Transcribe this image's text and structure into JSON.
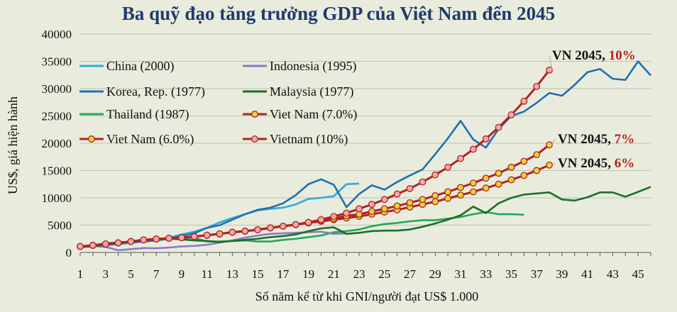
{
  "chart_data": {
    "type": "line",
    "title": "Ba quỹ đạo tăng trưởng GDP của Việt Nam đến 2045",
    "xlabel": "Số năm kể từ khi GNI/người đạt US$ 1.000",
    "ylabel": "US$, giá hiện hành",
    "xlim": [
      1,
      46
    ],
    "ylim": [
      0,
      40000
    ],
    "x_ticks": [
      1,
      3,
      5,
      7,
      9,
      11,
      13,
      15,
      17,
      19,
      21,
      23,
      25,
      27,
      29,
      31,
      33,
      35,
      37,
      39,
      41,
      43,
      45
    ],
    "y_ticks": [
      0,
      5000,
      10000,
      15000,
      20000,
      25000,
      30000,
      35000,
      40000
    ],
    "legend_placement": "top-left",
    "series": [
      {
        "name": "China (2000)",
        "color": "#2eaadc",
        "marker": "none",
        "x": [
          1,
          2,
          3,
          4,
          5,
          6,
          7,
          8,
          9,
          10,
          11,
          12,
          13,
          14,
          15,
          16,
          17,
          18,
          19,
          20,
          21,
          22,
          23
        ],
        "values": [
          1000,
          1150,
          1300,
          1500,
          1750,
          2000,
          2300,
          2700,
          3300,
          3800,
          4500,
          5500,
          6300,
          7000,
          7700,
          8000,
          8200,
          8800,
          9800,
          10000,
          10300,
          12500,
          12600
        ]
      },
      {
        "name": "Indonesia (1995)",
        "color": "#8a78c8",
        "marker": "none",
        "x": [
          1,
          2,
          3,
          4,
          5,
          6,
          7,
          8,
          9,
          10,
          11,
          12,
          13,
          14,
          15,
          16,
          17,
          18,
          19,
          20,
          21,
          22
        ],
        "values": [
          1100,
          1200,
          1000,
          400,
          600,
          800,
          750,
          900,
          1100,
          1200,
          1400,
          1800,
          2200,
          2700,
          3100,
          3400,
          3500,
          3600,
          3700,
          3800,
          3400,
          3500
        ]
      },
      {
        "name": "Korea, Rep. (1977)",
        "color": "#1f6fb4",
        "marker": "none",
        "x": [
          1,
          2,
          3,
          4,
          5,
          6,
          7,
          8,
          9,
          10,
          11,
          12,
          13,
          14,
          15,
          16,
          17,
          18,
          19,
          20,
          21,
          22,
          23,
          24,
          25,
          26,
          27,
          28,
          29,
          30,
          31,
          32,
          33,
          34,
          35,
          36,
          37,
          38,
          39,
          40,
          41,
          42,
          43,
          44,
          45,
          46
        ],
        "values": [
          1100,
          1300,
          1700,
          1800,
          1900,
          2000,
          2200,
          2500,
          3000,
          3500,
          4500,
          5000,
          6000,
          7000,
          7800,
          8200,
          9000,
          10500,
          12500,
          13400,
          12400,
          8300,
          10700,
          12300,
          11500,
          12900,
          14100,
          15200,
          18000,
          20900,
          24100,
          20700,
          19200,
          22600,
          25000,
          25800,
          27400,
          29200,
          28700,
          30700,
          33000,
          33600,
          31800,
          31600,
          35000,
          32400
        ]
      },
      {
        "name": "Malaysia  (1977)",
        "color": "#1c6e2a",
        "marker": "none",
        "x": [
          1,
          2,
          3,
          4,
          5,
          6,
          7,
          8,
          9,
          10,
          11,
          12,
          13,
          14,
          15,
          16,
          17,
          18,
          19,
          20,
          21,
          22,
          23,
          24,
          25,
          26,
          27,
          28,
          29,
          30,
          31,
          32,
          33,
          34,
          35,
          36,
          37,
          38,
          39,
          40,
          41,
          42,
          43,
          44,
          45,
          46
        ],
        "values": [
          1000,
          1100,
          1400,
          1700,
          1900,
          2000,
          2200,
          2500,
          2400,
          2200,
          2100,
          1900,
          2100,
          2300,
          2500,
          2800,
          3000,
          3300,
          3900,
          4400,
          4600,
          3400,
          3600,
          3900,
          4000,
          4000,
          4200,
          4700,
          5300,
          6000,
          6800,
          8400,
          7200,
          9000,
          10000,
          10600,
          10800,
          11000,
          9700,
          9500,
          10100,
          11000,
          11000,
          10200,
          11100,
          12000
        ]
      },
      {
        "name": "Thailand (1987)",
        "color": "#22a85a",
        "marker": "none",
        "x": [
          1,
          2,
          3,
          4,
          5,
          6,
          7,
          8,
          9,
          10,
          11,
          12,
          13,
          14,
          15,
          16,
          17,
          18,
          19,
          20,
          21,
          22,
          23,
          24,
          25,
          26,
          27,
          28,
          29,
          30,
          31,
          32,
          33,
          34,
          35,
          36
        ],
        "values": [
          1100,
          1200,
          1500,
          1700,
          1900,
          2100,
          2300,
          2500,
          2600,
          2700,
          2000,
          2000,
          2100,
          2200,
          2000,
          2000,
          2300,
          2500,
          2800,
          3100,
          3700,
          3900,
          4200,
          4800,
          5200,
          5400,
          5700,
          5900,
          5900,
          6200,
          6500,
          7000,
          7400,
          7000,
          7000,
          6900
        ]
      },
      {
        "name": "Viet Nam (7.0%)",
        "color": "#b22222",
        "marker": "yellow",
        "x": [
          1,
          2,
          3,
          4,
          5,
          6,
          7,
          8,
          9,
          10,
          11,
          12,
          13,
          14,
          15,
          16,
          17,
          18,
          19,
          20,
          21,
          22,
          23,
          24,
          25,
          26,
          27,
          28,
          29,
          30,
          31,
          32,
          33,
          34,
          35,
          36,
          37,
          38
        ],
        "values": [
          1100,
          1300,
          1550,
          1750,
          2000,
          2300,
          2450,
          2600,
          2700,
          2900,
          3150,
          3400,
          3700,
          3900,
          4150,
          4500,
          4800,
          5100,
          5500,
          5800,
          6200,
          6700,
          7000,
          7500,
          8000,
          8500,
          9100,
          9700,
          10400,
          11100,
          11900,
          12700,
          13600,
          14500,
          15600,
          16700,
          17900,
          19700
        ]
      },
      {
        "name": "Viet Nam (6.0%)",
        "color": "#b22222",
        "marker": "yellow",
        "x": [
          1,
          2,
          3,
          4,
          5,
          6,
          7,
          8,
          9,
          10,
          11,
          12,
          13,
          14,
          15,
          16,
          17,
          18,
          19,
          20,
          21,
          22,
          23,
          24,
          25,
          26,
          27,
          28,
          29,
          30,
          31,
          32,
          33,
          34,
          35,
          36,
          37,
          38
        ],
        "values": [
          1100,
          1300,
          1550,
          1750,
          2000,
          2300,
          2450,
          2600,
          2700,
          2900,
          3150,
          3400,
          3700,
          3900,
          4150,
          4500,
          4800,
          5100,
          5400,
          5700,
          6000,
          6300,
          6600,
          7000,
          7400,
          7800,
          8300,
          8800,
          9300,
          9900,
          10500,
          11100,
          11800,
          12500,
          13300,
          14100,
          15000,
          16000
        ]
      },
      {
        "name": "Vietnam (10%)",
        "color": "#b22222",
        "marker": "pink",
        "x": [
          1,
          2,
          3,
          4,
          5,
          6,
          7,
          8,
          9,
          10,
          11,
          12,
          13,
          14,
          15,
          16,
          17,
          18,
          19,
          20,
          21,
          22,
          23,
          24,
          25,
          26,
          27,
          28,
          29,
          30,
          31,
          32,
          33,
          34,
          35,
          36,
          37,
          38
        ],
        "values": [
          1100,
          1300,
          1550,
          1750,
          2000,
          2300,
          2450,
          2600,
          2700,
          2900,
          3150,
          3400,
          3700,
          3900,
          4150,
          4500,
          4800,
          5100,
          5500,
          6000,
          6600,
          7200,
          8000,
          8800,
          9700,
          10700,
          11700,
          12900,
          14200,
          15600,
          17200,
          18900,
          20800,
          22900,
          25200,
          27700,
          30400,
          33400
        ]
      }
    ],
    "annotations": [
      {
        "prefix": "VN 2045, ",
        "rate": "10%",
        "x": 38,
        "y": 33400
      },
      {
        "prefix": "VN 2045, ",
        "rate": "7%",
        "x": 38,
        "y": 19700
      },
      {
        "prefix": "VN 2045, ",
        "rate": "6%",
        "x": 38,
        "y": 16000
      }
    ]
  }
}
